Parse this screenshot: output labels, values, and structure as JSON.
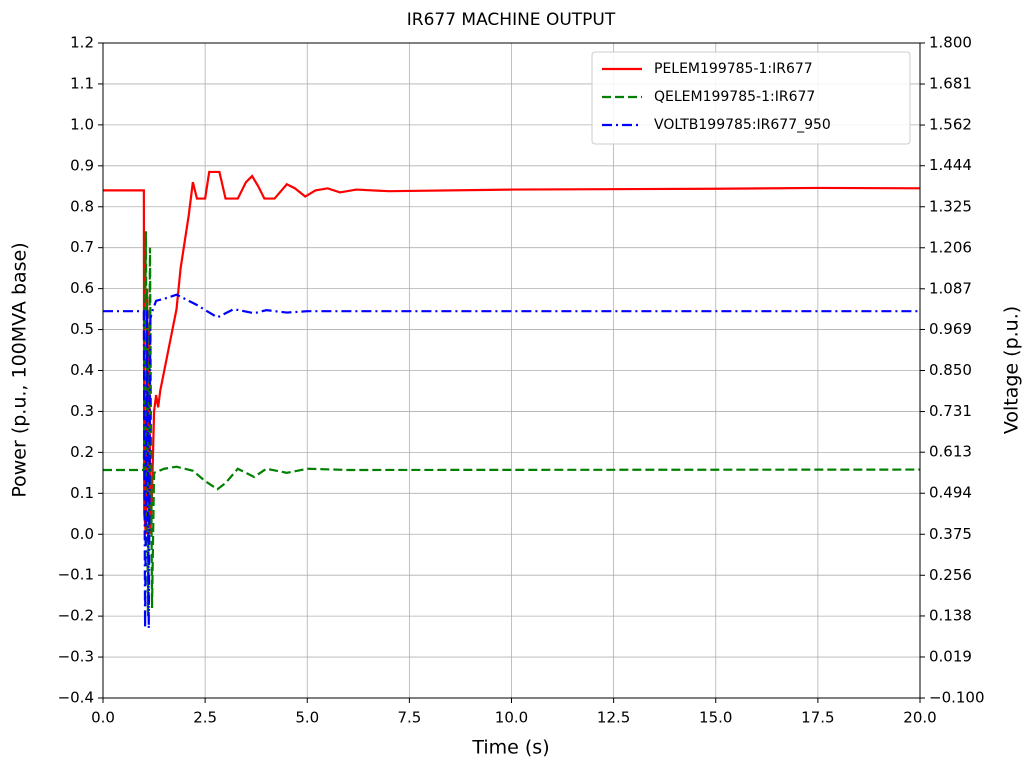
{
  "chart_data": {
    "type": "line",
    "title": "IR677 MACHINE OUTPUT",
    "xlabel": "Time (s)",
    "ylabel": "Power (p.u., 100MVA base)",
    "y2label": "Voltage (p.u.)",
    "grid": true,
    "legend": "upper right",
    "xlim": [
      0,
      20
    ],
    "xticks": [
      {
        "value": 0,
        "label": "0.0"
      },
      2.5,
      {
        "value": 5,
        "label": "5.0"
      },
      7.5,
      {
        "value": 10,
        "label": "10.0"
      },
      12.5,
      {
        "value": 15,
        "label": "15.0"
      },
      17.5,
      {
        "value": 20,
        "label": "20.0"
      }
    ],
    "ylim": [
      -0.4,
      1.2
    ],
    "yticks": [
      {
        "value": -0.4,
        "label": "−0.4"
      },
      {
        "value": -0.3,
        "label": "−0.3"
      },
      {
        "value": -0.2,
        "label": "−0.2"
      },
      {
        "value": -0.1,
        "label": "−0.1"
      },
      {
        "value": 0,
        "label": "0.0"
      },
      0.1,
      0.2,
      0.3,
      0.4,
      0.5,
      0.6,
      0.7,
      0.8,
      0.9,
      {
        "value": 1,
        "label": "1.0"
      },
      1.1,
      1.2
    ],
    "y2lim": [
      -0.1,
      1.8
    ],
    "y2ticks": [
      {
        "value": -0.1,
        "label": "−0.100"
      },
      0.019,
      0.138,
      0.256,
      0.375,
      0.494,
      0.613,
      0.731,
      {
        "value": 0.85,
        "label": "0.850"
      },
      0.969,
      1.087,
      1.206,
      1.325,
      1.444,
      1.562,
      1.681,
      {
        "value": 1.8,
        "label": "1.800"
      }
    ],
    "series": [
      {
        "name": "PELEM199785-1:IR677",
        "color": "#ff0000",
        "dash": "solid",
        "x": [
          0,
          1.0,
          1.01,
          1.05,
          1.08,
          1.1,
          1.13,
          1.16,
          1.2,
          1.25,
          1.3,
          1.35,
          1.4,
          1.6,
          1.8,
          1.9,
          2.1,
          2.2,
          2.3,
          2.5,
          2.6,
          2.85,
          3.0,
          3.3,
          3.5,
          3.65,
          3.8,
          3.95,
          4.2,
          4.5,
          4.7,
          4.95,
          5.2,
          5.5,
          5.8,
          6.2,
          7,
          10,
          15,
          17.5,
          20
        ],
        "values": [
          0.84,
          0.84,
          0.05,
          0.0,
          0.6,
          0.1,
          0.5,
          0.0,
          0.1,
          0.3,
          0.34,
          0.31,
          0.35,
          0.45,
          0.55,
          0.65,
          0.78,
          0.86,
          0.82,
          0.82,
          0.885,
          0.885,
          0.82,
          0.82,
          0.86,
          0.875,
          0.85,
          0.82,
          0.82,
          0.855,
          0.845,
          0.825,
          0.84,
          0.845,
          0.835,
          0.842,
          0.838,
          0.842,
          0.844,
          0.846,
          0.845
        ]
      },
      {
        "name": "QELEM199785-1:IR677",
        "color": "#008000",
        "dash": "dashed",
        "x": [
          0,
          1.0,
          1.05,
          1.1,
          1.15,
          1.2,
          1.25,
          1.5,
          1.8,
          2.2,
          2.5,
          2.8,
          3.0,
          3.3,
          3.7,
          4.0,
          4.5,
          5,
          6,
          20
        ],
        "values": [
          0.157,
          0.157,
          0.74,
          -0.2,
          0.7,
          -0.18,
          0.15,
          0.16,
          0.165,
          0.155,
          0.13,
          0.11,
          0.125,
          0.16,
          0.14,
          0.16,
          0.15,
          0.16,
          0.157,
          0.158
        ]
      },
      {
        "name": "VOLTB199785:IR677_950",
        "color": "#0000ff",
        "dash": "dashdot",
        "axis": "y2",
        "x": [
          0,
          1.0,
          1.03,
          1.08,
          1.12,
          1.16,
          1.2,
          1.3,
          1.5,
          1.8,
          2.0,
          2.3,
          2.8,
          3.2,
          3.7,
          4.0,
          4.5,
          5,
          20
        ],
        "values": [
          1.022,
          1.022,
          0.102,
          1.028,
          0.102,
          1.0,
          1.02,
          1.052,
          1.058,
          1.07,
          1.058,
          1.04,
          1.004,
          1.028,
          1.016,
          1.025,
          1.018,
          1.022,
          1.022
        ]
      }
    ]
  }
}
